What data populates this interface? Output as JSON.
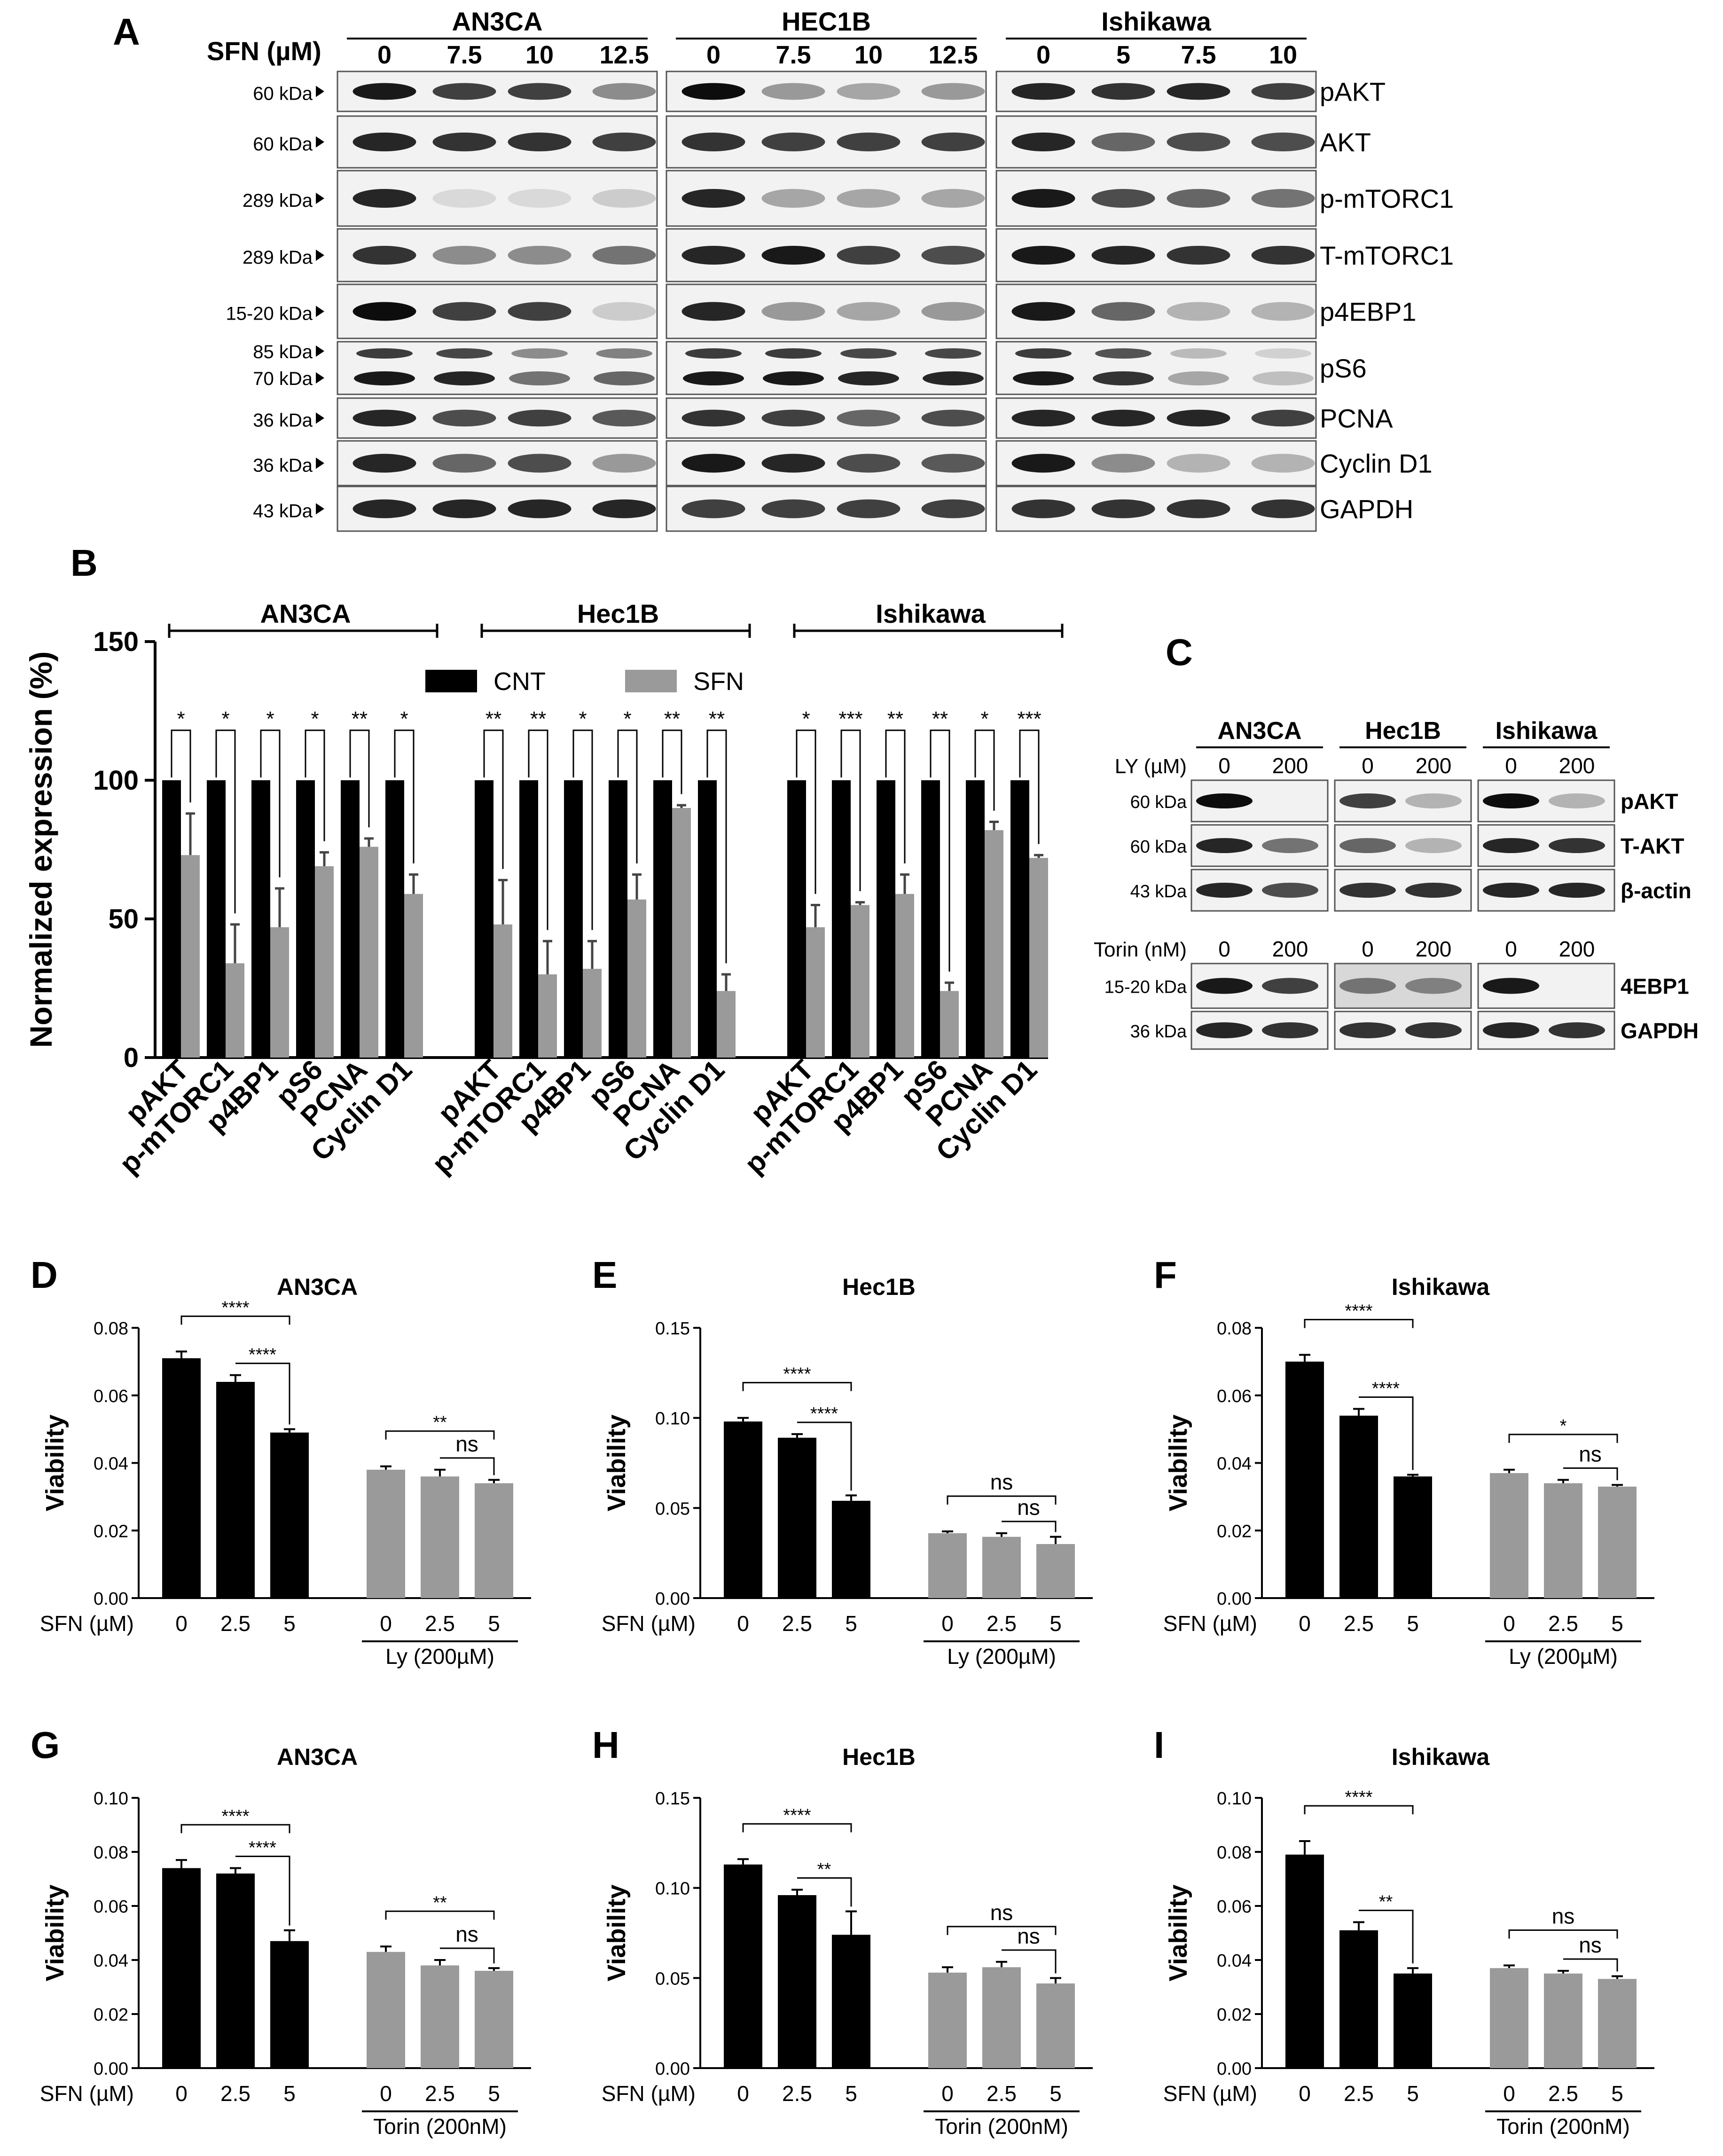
{
  "panel_a": {
    "letter": "A",
    "sfn_label": "SFN (µM)",
    "groups": [
      {
        "name": "AN3CA",
        "doses": [
          "0",
          "7.5",
          "10",
          "12.5"
        ]
      },
      {
        "name": "HEC1B",
        "doses": [
          "0",
          "7.5",
          "10",
          "12.5"
        ]
      },
      {
        "name": "Ishikawa",
        "doses": [
          "0",
          "5",
          "7.5",
          "10"
        ]
      }
    ],
    "rows": [
      {
        "kda": [
          "60 kDa"
        ],
        "protein": "pAKT",
        "bands": [
          [
            0.9,
            0.75,
            0.75,
            0.45
          ],
          [
            0.95,
            0.4,
            0.35,
            0.4
          ],
          [
            0.85,
            0.8,
            0.85,
            0.75
          ]
        ]
      },
      {
        "kda": [
          "60 kDa"
        ],
        "protein": "AKT",
        "bands": [
          [
            0.85,
            0.8,
            0.8,
            0.75
          ],
          [
            0.8,
            0.75,
            0.75,
            0.75
          ],
          [
            0.85,
            0.6,
            0.7,
            0.7
          ]
        ]
      },
      {
        "kda": [
          "289 kDa"
        ],
        "protein": "p-mTORC1",
        "bands": [
          [
            0.85,
            0.15,
            0.15,
            0.2
          ],
          [
            0.85,
            0.35,
            0.35,
            0.35
          ],
          [
            0.9,
            0.7,
            0.6,
            0.55
          ]
        ]
      },
      {
        "kda": [
          "289 kDa"
        ],
        "protein": "T-mTORC1",
        "bands": [
          [
            0.8,
            0.45,
            0.45,
            0.55
          ],
          [
            0.85,
            0.9,
            0.75,
            0.7
          ],
          [
            0.9,
            0.85,
            0.8,
            0.8
          ]
        ]
      },
      {
        "kda": [
          "15-20 kDa"
        ],
        "protein": "p4EBP1",
        "bands": [
          [
            0.95,
            0.75,
            0.75,
            0.2
          ],
          [
            0.85,
            0.4,
            0.35,
            0.4
          ],
          [
            0.9,
            0.6,
            0.3,
            0.3
          ]
        ]
      },
      {
        "kda": [
          "85 kDa",
          "70 kDa"
        ],
        "protein": "pS6",
        "bands": [
          [
            0.85,
            0.8,
            0.5,
            0.55
          ],
          [
            0.85,
            0.85,
            0.8,
            0.8
          ],
          [
            0.85,
            0.75,
            0.3,
            0.2
          ]
        ]
      },
      {
        "kda": [
          "36 kDa"
        ],
        "protein": "PCNA",
        "bands": [
          [
            0.85,
            0.7,
            0.75,
            0.65
          ],
          [
            0.8,
            0.75,
            0.6,
            0.7
          ],
          [
            0.85,
            0.85,
            0.85,
            0.75
          ]
        ]
      },
      {
        "kda": [
          "36 kDa"
        ],
        "protein": "Cyclin D1",
        "bands": [
          [
            0.85,
            0.6,
            0.7,
            0.4
          ],
          [
            0.9,
            0.85,
            0.7,
            0.65
          ],
          [
            0.9,
            0.45,
            0.3,
            0.3
          ]
        ]
      },
      {
        "kda": [
          "43 kDa"
        ],
        "protein": "GAPDH",
        "bands": [
          [
            0.85,
            0.85,
            0.85,
            0.85
          ],
          [
            0.75,
            0.75,
            0.75,
            0.75
          ],
          [
            0.8,
            0.8,
            0.8,
            0.8
          ]
        ]
      }
    ]
  },
  "panel_b": {
    "letter": "B",
    "ylabel": "Normalized expression (%)",
    "legend": [
      "CNT",
      "SFN"
    ],
    "colors": {
      "cnt": "#000000",
      "sfn": "#9a9a9a"
    },
    "yticks": [
      "0",
      "50",
      "100",
      "150"
    ],
    "chart_data": {
      "type": "bar",
      "ylabel": "Normalized expression (%)",
      "ylim": [
        0,
        150
      ],
      "legend": [
        "CNT",
        "SFN"
      ],
      "groups": [
        {
          "name": "AN3CA",
          "categories": [
            "pAKT",
            "p-mTORC1",
            "p4BP1",
            "pS6",
            "PCNA",
            "Cyclin D1"
          ],
          "cnt": [
            100,
            100,
            100,
            100,
            100,
            100
          ],
          "sfn": [
            73,
            34,
            47,
            69,
            76,
            59
          ],
          "sfn_err": [
            15,
            14,
            14,
            5,
            3,
            7
          ],
          "sig": [
            "*",
            "*",
            "*",
            "*",
            "**",
            "*"
          ]
        },
        {
          "name": "Hec1B",
          "categories": [
            "pAKT",
            "p-mTORC1",
            "p4BP1",
            "pS6",
            "PCNA",
            "Cyclin D1"
          ],
          "cnt": [
            100,
            100,
            100,
            100,
            100,
            100
          ],
          "sfn": [
            48,
            30,
            32,
            57,
            90,
            24
          ],
          "sfn_err": [
            16,
            12,
            10,
            9,
            1,
            6
          ],
          "sig": [
            "**",
            "**",
            "*",
            "*",
            "**",
            "**"
          ]
        },
        {
          "name": "Ishikawa",
          "categories": [
            "pAKT",
            "p-mTORC1",
            "p4BP1",
            "pS6",
            "PCNA",
            "Cyclin D1"
          ],
          "cnt": [
            100,
            100,
            100,
            100,
            100,
            100
          ],
          "sfn": [
            47,
            55,
            59,
            24,
            82,
            72
          ],
          "sfn_err": [
            8,
            1,
            7,
            3,
            3,
            1
          ],
          "sig": [
            "*",
            "***",
            "**",
            "**",
            "*",
            "***"
          ]
        }
      ]
    }
  },
  "panel_c": {
    "letter": "C",
    "groups": [
      "AN3CA",
      "Hec1B",
      "Ishikawa"
    ],
    "ly_label": "LY (µM)",
    "torin_label": "Torin (nM)",
    "doses": [
      "0",
      "200"
    ],
    "ly_rows": [
      {
        "kda": "60 kDa",
        "protein": "pAKT",
        "bands": [
          [
            0.95,
            0.0
          ],
          [
            0.75,
            0.3
          ],
          [
            0.95,
            0.3
          ]
        ]
      },
      {
        "kda": "60 kDa",
        "protein": "T-AKT",
        "bands": [
          [
            0.85,
            0.55
          ],
          [
            0.6,
            0.3
          ],
          [
            0.85,
            0.8
          ]
        ]
      },
      {
        "kda": "43 kDa",
        "protein": "β-actin",
        "bands": [
          [
            0.85,
            0.7
          ],
          [
            0.8,
            0.8
          ],
          [
            0.85,
            0.85
          ]
        ]
      }
    ],
    "torin_rows": [
      {
        "kda": "15-20 kDa",
        "protein": "4EBP1",
        "bands": [
          [
            0.9,
            0.75
          ],
          [
            0.55,
            0.5
          ],
          [
            0.9,
            0.0
          ]
        ]
      },
      {
        "kda": "36 kDa",
        "protein": "GAPDH",
        "bands": [
          [
            0.85,
            0.8
          ],
          [
            0.8,
            0.8
          ],
          [
            0.85,
            0.8
          ]
        ]
      }
    ]
  },
  "viability_panels": [
    {
      "letter": "D",
      "title": "AN3CA",
      "ylabel": "Viability",
      "xlabel": "SFN (µM)",
      "group_label": "Ly (200µM)",
      "yticks": [
        "0.00",
        "0.02",
        "0.04",
        "0.06",
        "0.08"
      ],
      "chart_data": {
        "type": "bar",
        "x": [
          "0",
          "2.5",
          "5",
          "0",
          "2.5",
          "5"
        ],
        "ylim": [
          0,
          0.08
        ],
        "values": [
          0.071,
          0.064,
          0.049,
          0.038,
          0.036,
          0.034
        ],
        "errors": [
          0.002,
          0.002,
          0.001,
          0.001,
          0.002,
          0.001
        ],
        "colors": [
          "#000000",
          "#000000",
          "#000000",
          "#9a9a9a",
          "#9a9a9a",
          "#9a9a9a"
        ],
        "sig": [
          {
            "from": 0,
            "to": 2,
            "label": "****"
          },
          {
            "from": 1,
            "to": 2,
            "label": "****"
          },
          {
            "from": 3,
            "to": 5,
            "label": "**"
          },
          {
            "from": 4,
            "to": 5,
            "label": "ns"
          }
        ]
      }
    },
    {
      "letter": "E",
      "title": "Hec1B",
      "ylabel": "Viability",
      "xlabel": "SFN (µM)",
      "group_label": "Ly (200µM)",
      "yticks": [
        "0.00",
        "0.05",
        "0.10",
        "0.15"
      ],
      "chart_data": {
        "type": "bar",
        "x": [
          "0",
          "2.5",
          "5",
          "0",
          "2.5",
          "5"
        ],
        "ylim": [
          0,
          0.15
        ],
        "values": [
          0.098,
          0.089,
          0.054,
          0.036,
          0.034,
          0.03
        ],
        "errors": [
          0.002,
          0.002,
          0.003,
          0.001,
          0.002,
          0.004
        ],
        "colors": [
          "#000000",
          "#000000",
          "#000000",
          "#9a9a9a",
          "#9a9a9a",
          "#9a9a9a"
        ],
        "sig": [
          {
            "from": 0,
            "to": 2,
            "label": "****"
          },
          {
            "from": 1,
            "to": 2,
            "label": "****"
          },
          {
            "from": 3,
            "to": 5,
            "label": "ns"
          },
          {
            "from": 4,
            "to": 5,
            "label": "ns"
          }
        ]
      }
    },
    {
      "letter": "F",
      "title": "Ishikawa",
      "ylabel": "Viability",
      "xlabel": "SFN (µM)",
      "group_label": "Ly (200µM)",
      "yticks": [
        "0.00",
        "0.02",
        "0.04",
        "0.06",
        "0.08"
      ],
      "chart_data": {
        "type": "bar",
        "x": [
          "0",
          "2.5",
          "5",
          "0",
          "2.5",
          "5"
        ],
        "ylim": [
          0,
          0.08
        ],
        "values": [
          0.07,
          0.054,
          0.036,
          0.037,
          0.034,
          0.033
        ],
        "errors": [
          0.002,
          0.002,
          0.0005,
          0.001,
          0.001,
          0.0005
        ],
        "colors": [
          "#000000",
          "#000000",
          "#000000",
          "#9a9a9a",
          "#9a9a9a",
          "#9a9a9a"
        ],
        "sig": [
          {
            "from": 0,
            "to": 2,
            "label": "****"
          },
          {
            "from": 1,
            "to": 2,
            "label": "****"
          },
          {
            "from": 3,
            "to": 5,
            "label": "*"
          },
          {
            "from": 4,
            "to": 5,
            "label": "ns"
          }
        ]
      }
    },
    {
      "letter": "G",
      "title": "AN3CA",
      "ylabel": "Viability",
      "xlabel": "SFN (µM)",
      "group_label": "Torin (200nM)",
      "yticks": [
        "0.00",
        "0.02",
        "0.04",
        "0.06",
        "0.08",
        "0.10"
      ],
      "chart_data": {
        "type": "bar",
        "x": [
          "0",
          "2.5",
          "5",
          "0",
          "2.5",
          "5"
        ],
        "ylim": [
          0,
          0.1
        ],
        "values": [
          0.074,
          0.072,
          0.047,
          0.043,
          0.038,
          0.036
        ],
        "errors": [
          0.003,
          0.002,
          0.004,
          0.002,
          0.002,
          0.001
        ],
        "colors": [
          "#000000",
          "#000000",
          "#000000",
          "#9a9a9a",
          "#9a9a9a",
          "#9a9a9a"
        ],
        "sig": [
          {
            "from": 0,
            "to": 2,
            "label": "****"
          },
          {
            "from": 1,
            "to": 2,
            "label": "****"
          },
          {
            "from": 3,
            "to": 5,
            "label": "**"
          },
          {
            "from": 4,
            "to": 5,
            "label": "ns"
          }
        ]
      }
    },
    {
      "letter": "H",
      "title": "Hec1B",
      "ylabel": "Viability",
      "xlabel": "SFN (µM)",
      "group_label": "Torin (200nM)",
      "yticks": [
        "0.00",
        "0.05",
        "0.10",
        "0.15"
      ],
      "chart_data": {
        "type": "bar",
        "x": [
          "0",
          "2.5",
          "5",
          "0",
          "2.5",
          "5"
        ],
        "ylim": [
          0,
          0.15
        ],
        "values": [
          0.113,
          0.096,
          0.074,
          0.053,
          0.056,
          0.047
        ],
        "errors": [
          0.003,
          0.003,
          0.013,
          0.003,
          0.003,
          0.003
        ],
        "colors": [
          "#000000",
          "#000000",
          "#000000",
          "#9a9a9a",
          "#9a9a9a",
          "#9a9a9a"
        ],
        "sig": [
          {
            "from": 0,
            "to": 2,
            "label": "****"
          },
          {
            "from": 1,
            "to": 2,
            "label": "**"
          },
          {
            "from": 3,
            "to": 5,
            "label": "ns"
          },
          {
            "from": 4,
            "to": 5,
            "label": "ns"
          }
        ]
      }
    },
    {
      "letter": "I",
      "title": "Ishikawa",
      "ylabel": "Viability",
      "xlabel": "SFN (µM)",
      "group_label": "Torin (200nM)",
      "yticks": [
        "0.00",
        "0.02",
        "0.04",
        "0.06",
        "0.08",
        "0.10"
      ],
      "chart_data": {
        "type": "bar",
        "x": [
          "0",
          "2.5",
          "5",
          "0",
          "2.5",
          "5"
        ],
        "ylim": [
          0,
          0.1
        ],
        "values": [
          0.079,
          0.051,
          0.035,
          0.037,
          0.035,
          0.033
        ],
        "errors": [
          0.005,
          0.003,
          0.002,
          0.001,
          0.001,
          0.001
        ],
        "colors": [
          "#000000",
          "#000000",
          "#000000",
          "#9a9a9a",
          "#9a9a9a",
          "#9a9a9a"
        ],
        "sig": [
          {
            "from": 0,
            "to": 2,
            "label": "****"
          },
          {
            "from": 1,
            "to": 2,
            "label": "**"
          },
          {
            "from": 3,
            "to": 5,
            "label": "ns"
          },
          {
            "from": 4,
            "to": 5,
            "label": "ns"
          }
        ]
      }
    }
  ]
}
